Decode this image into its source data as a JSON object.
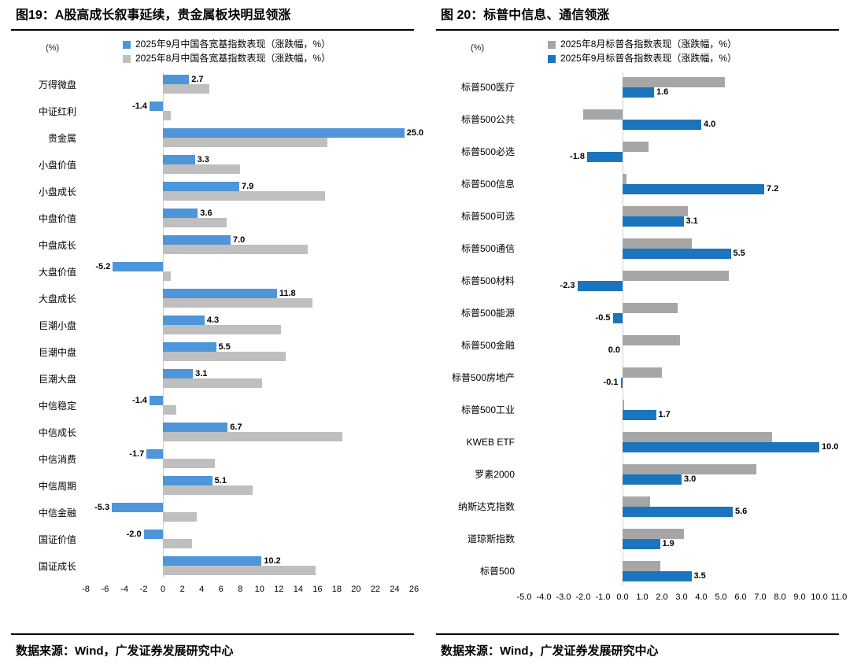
{
  "page": {
    "background": "#FFFFFF",
    "left_blue": "#4E95D9",
    "left_gray": "#BFBFBF",
    "right_blue": "#1B75BE",
    "right_gray": "#A6A6A6"
  },
  "chart_data": [
    {
      "type": "bar",
      "orientation": "horizontal",
      "title": "图19：A股高成长叙事延续，贵金属板块明显领涨",
      "unit_label": "(%)",
      "source": "数据来源：Wind，广发证券发展研究中心",
      "legend_position": "top",
      "grid": false,
      "xlim": [
        -8,
        26
      ],
      "xticks": [
        -8,
        -6,
        -4,
        -2,
        0,
        2,
        4,
        6,
        8,
        10,
        12,
        14,
        16,
        18,
        20,
        22,
        24,
        26
      ],
      "xtick_labels": [
        "-8",
        "-6",
        "-4",
        "-2",
        "0",
        "2",
        "4",
        "6",
        "8",
        "10",
        "12",
        "14",
        "16",
        "18",
        "20",
        "22",
        "24",
        "26"
      ],
      "categories": [
        "万得微盘",
        "中证红利",
        "贵金属",
        "小盘价值",
        "小盘成长",
        "中盘价值",
        "中盘成长",
        "大盘价值",
        "大盘成长",
        "巨潮小盘",
        "巨潮中盘",
        "巨潮大盘",
        "中信稳定",
        "中信成长",
        "中信消费",
        "中信周期",
        "中信金融",
        "国证价值",
        "国证成长"
      ],
      "series": [
        {
          "key": "sep-2025",
          "name": "2025年9月中国各宽基指数表现（涨跌幅，%）",
          "color": "#4E95D9",
          "show_labels": true,
          "values": [
            2.7,
            -1.4,
            25.0,
            3.3,
            7.9,
            3.6,
            7.0,
            -5.2,
            11.8,
            4.3,
            5.5,
            3.1,
            -1.4,
            6.7,
            -1.7,
            5.1,
            -5.3,
            -2.0,
            10.2
          ]
        },
        {
          "key": "aug-2025",
          "name": "2025年8月中国各宽基指数表现（涨跌幅，%）",
          "color": "#BFBFBF",
          "show_labels": false,
          "values": [
            4.8,
            0.8,
            17.0,
            8.0,
            16.8,
            6.6,
            15.0,
            0.8,
            15.5,
            12.2,
            12.7,
            10.3,
            1.4,
            18.6,
            5.4,
            9.3,
            3.5,
            3.0,
            15.8
          ]
        }
      ]
    },
    {
      "type": "bar",
      "orientation": "horizontal",
      "title": "图 20：标普中信息、通信领涨",
      "unit_label": "(%)",
      "source": "数据来源：Wind，广发证券发展研究中心",
      "legend_position": "top",
      "grid": false,
      "xlim": [
        -5,
        11
      ],
      "xticks": [
        -5,
        -4,
        -3,
        -2,
        -1,
        0,
        1,
        2,
        3,
        4,
        5,
        6,
        7,
        8,
        9,
        10,
        11
      ],
      "xtick_labels": [
        "-5.0",
        "-4.0",
        "-3.0",
        "-2.0",
        "-1.0",
        "0.0",
        "1.0",
        "2.0",
        "3.0",
        "4.0",
        "5.0",
        "6.0",
        "7.0",
        "8.0",
        "9.0",
        "10.0",
        "11.0"
      ],
      "categories": [
        "标普500医疗",
        "标普500公共",
        "标普500必选",
        "标普500信息",
        "标普500可选",
        "标普500通信",
        "标普500材料",
        "标普500能源",
        "标普500金融",
        "标普500房地产",
        "标普500工业",
        "KWEB ETF",
        "罗素2000",
        "纳斯达克指数",
        "道琼斯指数",
        "标普500"
      ],
      "series": [
        {
          "key": "aug-2025",
          "name": "2025年8月标普各指数表现（涨跌幅，%）",
          "color": "#A6A6A6",
          "show_labels": false,
          "values": [
            5.2,
            -2.0,
            1.3,
            0.2,
            3.3,
            3.5,
            5.4,
            2.8,
            2.9,
            2.0,
            0.1,
            7.6,
            6.8,
            1.4,
            3.1,
            1.9
          ]
        },
        {
          "key": "sep-2025",
          "name": "2025年9月标普各指数表现（涨跌幅，%）",
          "color": "#1B75BE",
          "show_labels": true,
          "values": [
            1.6,
            4.0,
            -1.8,
            7.2,
            3.1,
            5.5,
            -2.3,
            -0.5,
            0.0,
            -0.1,
            1.7,
            10.0,
            3.0,
            5.6,
            1.9,
            3.5
          ]
        }
      ]
    }
  ]
}
